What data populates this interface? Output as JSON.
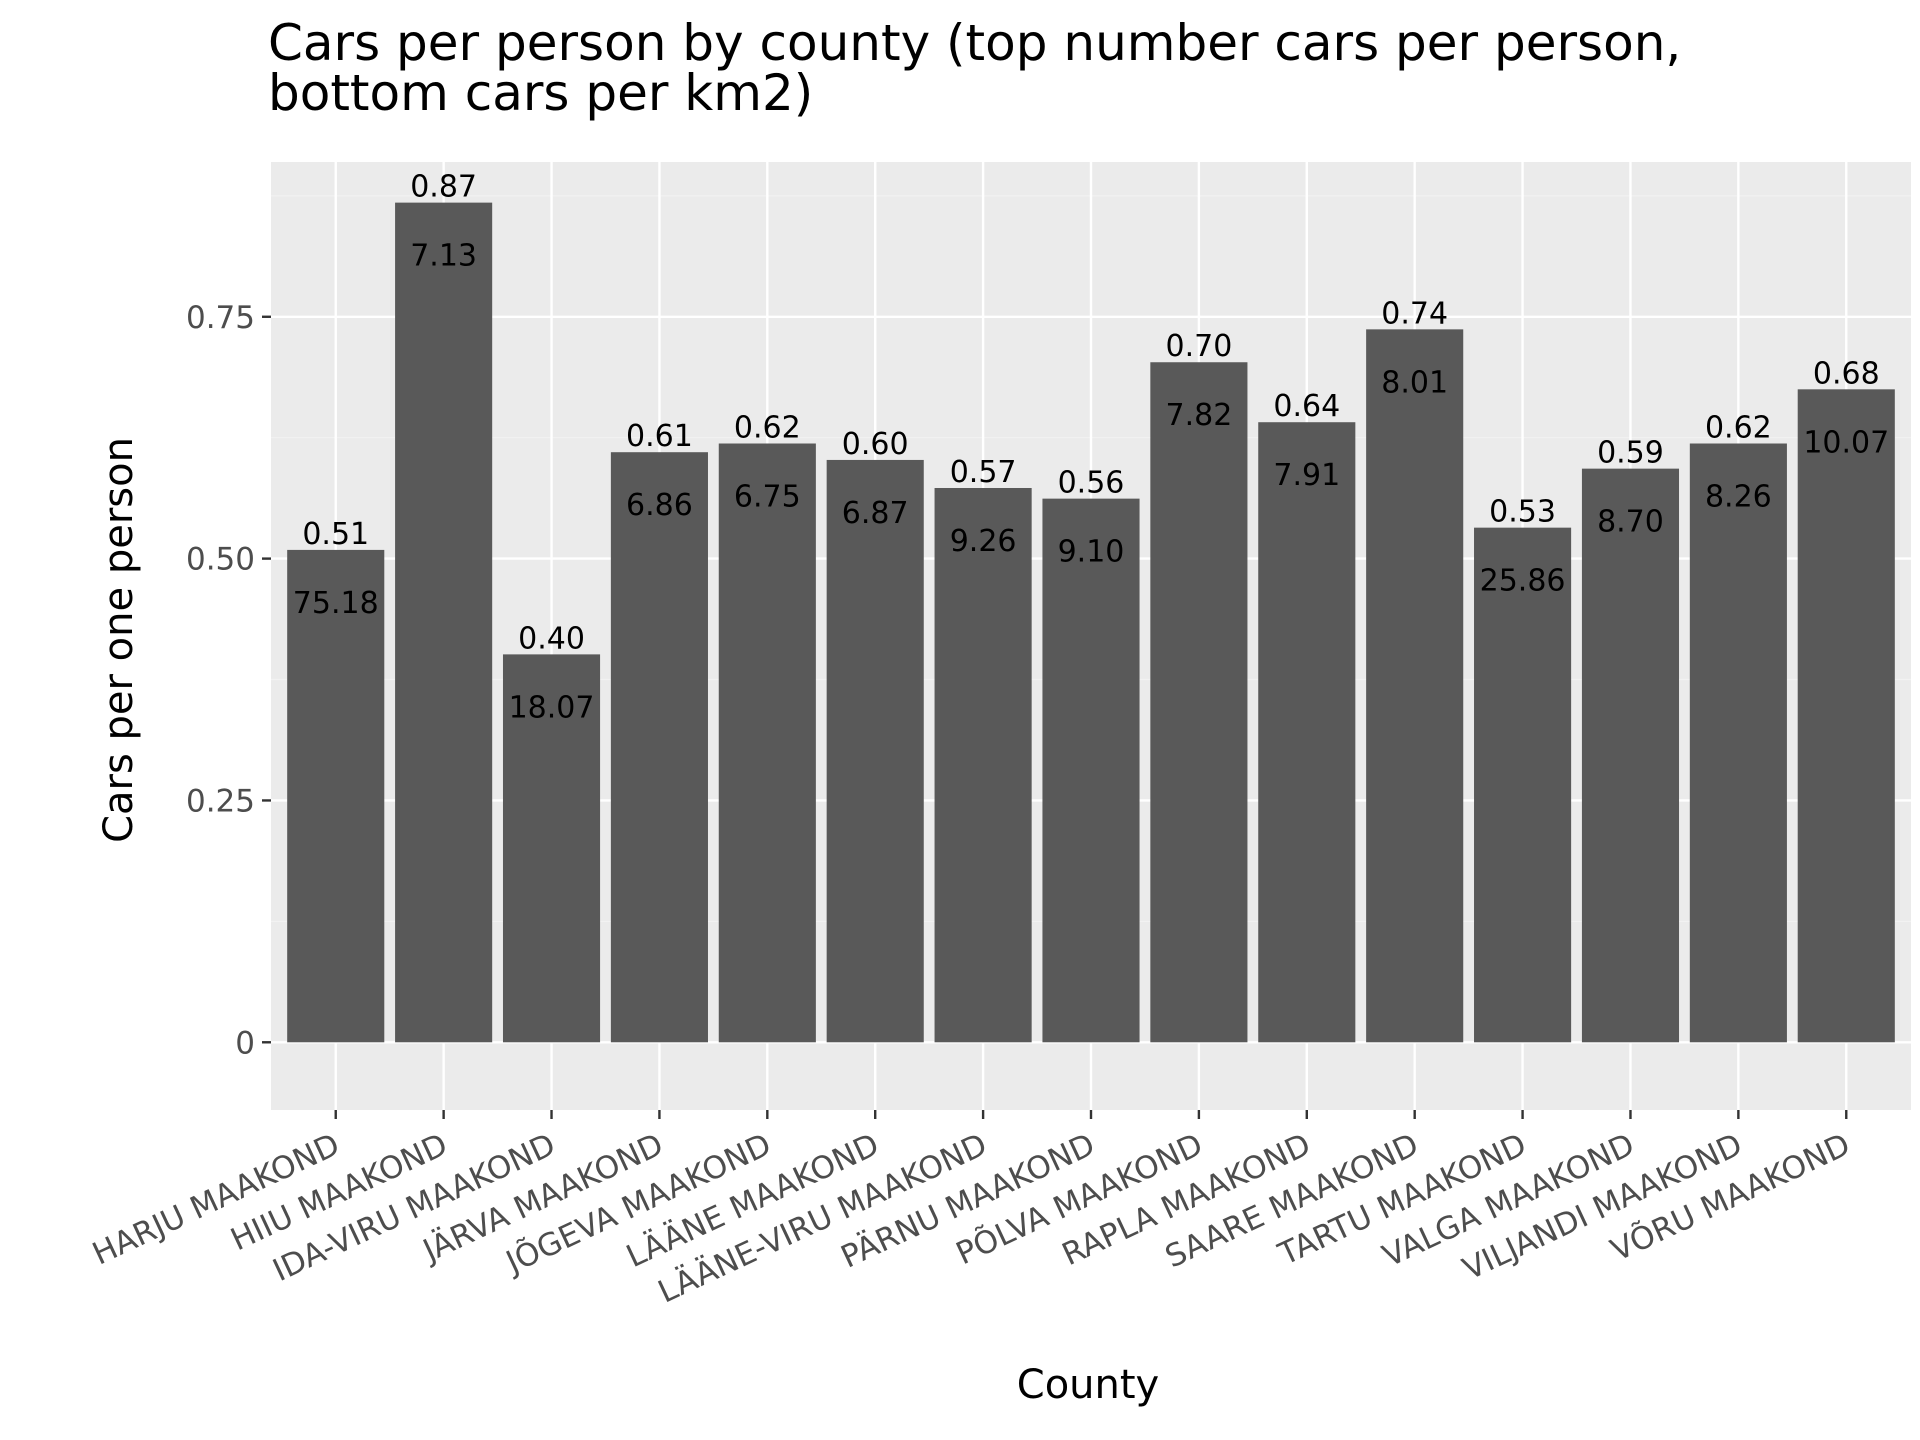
{
  "chart_data": {
    "type": "bar",
    "title": "Cars per person by county (top number cars per person, bottom cars per km2)",
    "title_lines": [
      "Cars per person by county (top number cars per person,",
      "bottom cars per km2)"
    ],
    "xlabel": "County",
    "ylabel": "Cars per one person",
    "ylim": [
      -0.07,
      0.91
    ],
    "yticks": [
      0,
      0.25,
      0.5,
      0.75
    ],
    "ytick_labels": [
      "0",
      "0.25",
      "0.50",
      "0.75"
    ],
    "grid": true,
    "legend": "none",
    "categories": [
      "HARJU MAAKOND",
      "HIIU MAAKOND",
      "IDA-VIRU MAAKOND",
      "JÄRVA MAAKOND",
      "JÕGEVA MAAKOND",
      "LÄÄNE MAAKOND",
      "LÄÄNE-VIRU MAAKOND",
      "PÄRNU MAAKOND",
      "PÕLVA MAAKOND",
      "RAPLA MAAKOND",
      "SAARE MAAKOND",
      "TARTU MAAKOND",
      "VALGA MAAKOND",
      "VILJANDI MAAKOND",
      "VÕRU MAAKOND"
    ],
    "values": [
      0.509,
      0.868,
      0.401,
      0.61,
      0.619,
      0.602,
      0.573,
      0.562,
      0.703,
      0.641,
      0.737,
      0.532,
      0.593,
      0.619,
      0.675
    ],
    "top_labels": [
      "0.51",
      "0.87",
      "0.40",
      "0.61",
      "0.62",
      "0.60",
      "0.57",
      "0.56",
      "0.70",
      "0.64",
      "0.74",
      "0.53",
      "0.59",
      "0.62",
      "0.68"
    ],
    "bottom_labels": [
      "75.18",
      "7.13",
      "18.07",
      "6.86",
      "6.75",
      "6.87",
      "9.26",
      "9.10",
      "7.82",
      "7.91",
      "8.01",
      "25.86",
      "8.70",
      "8.26",
      "10.07"
    ],
    "colors": {
      "bar": "#595959",
      "panel": "#ebebeb",
      "grid_major": "#ffffff",
      "grid_minor": "#f2f2f2",
      "tick_text": "#4d4d4d",
      "tick_mark": "#333333"
    }
  }
}
